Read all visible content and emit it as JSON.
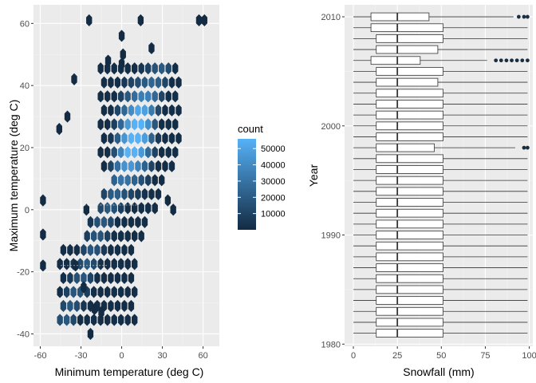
{
  "chart_data": [
    {
      "type": "heatmap",
      "subtype": "hexbin",
      "xlabel": "Minimum temperature (deg C)",
      "ylabel": "Maximum temperature (deg C)",
      "xlim": [
        -65,
        72
      ],
      "ylim": [
        -44,
        66
      ],
      "x_ticks": [
        -60,
        -30,
        0,
        30,
        60
      ],
      "y_ticks": [
        -40,
        -20,
        0,
        20,
        40,
        60
      ],
      "legend": {
        "title": "count",
        "labels": [
          "10000",
          "20000",
          "30000",
          "40000",
          "50000"
        ],
        "values": [
          10000,
          20000,
          30000,
          40000,
          50000
        ],
        "min": 0,
        "max": 56000,
        "color_low": "#132B43",
        "color_high": "#56B1F7",
        "placement": "right"
      },
      "hexbin_width": 5.0,
      "hexbin_height": 4.5,
      "core_band": {
        "x_from": -45,
        "x_to": 42,
        "y_low_offset": -18,
        "y_high_offset": 13
      },
      "hotspot": {
        "x": 10,
        "y": 24,
        "peak": 56000
      },
      "outliers": [
        [
          -58,
          -18
        ],
        [
          -58,
          -8
        ],
        [
          -58,
          3
        ],
        [
          -46,
          26
        ],
        [
          -40,
          30
        ],
        [
          -24,
          61
        ],
        [
          -26,
          0
        ],
        [
          -34,
          -18
        ],
        [
          -28,
          -25
        ],
        [
          -20,
          -32
        ],
        [
          -15,
          -33
        ],
        [
          -23,
          -40
        ],
        [
          0,
          56
        ],
        [
          1,
          50
        ],
        [
          0,
          47
        ],
        [
          14,
          61
        ],
        [
          22,
          52
        ],
        [
          57,
          61
        ],
        [
          61,
          61
        ],
        [
          34,
          3
        ],
        [
          38,
          0
        ],
        [
          -35,
          42
        ],
        [
          -10,
          48
        ]
      ],
      "grid": true,
      "background": "#EBEBEB"
    },
    {
      "type": "boxplot",
      "orientation": "horizontal",
      "xlabel": "Snowfall (mm)",
      "ylabel": "Year",
      "xlim": [
        -5,
        102
      ],
      "ylim": [
        1979.8,
        2011.1
      ],
      "x_ticks": [
        0,
        25,
        50,
        75,
        100
      ],
      "y_ticks": [
        1980,
        1990,
        2000,
        2010
      ],
      "grid": true,
      "background": "#EBEBEB",
      "box_fill": "#FFFFFF",
      "box_stroke": "#333333",
      "outlier_color": "#1A2E40",
      "boxes": [
        {
          "year": 1981,
          "min": 0,
          "q1": 13,
          "median": 25,
          "q3": 51,
          "max": 99,
          "outliers": []
        },
        {
          "year": 1982,
          "min": 0,
          "q1": 13,
          "median": 25,
          "q3": 51,
          "max": 99,
          "outliers": []
        },
        {
          "year": 1983,
          "min": 0,
          "q1": 13,
          "median": 25,
          "q3": 51,
          "max": 99,
          "outliers": []
        },
        {
          "year": 1984,
          "min": 0,
          "q1": 13,
          "median": 25,
          "q3": 51,
          "max": 99,
          "outliers": []
        },
        {
          "year": 1985,
          "min": 0,
          "q1": 13,
          "median": 25,
          "q3": 51,
          "max": 99,
          "outliers": []
        },
        {
          "year": 1986,
          "min": 0,
          "q1": 13,
          "median": 25,
          "q3": 51,
          "max": 99,
          "outliers": []
        },
        {
          "year": 1987,
          "min": 0,
          "q1": 13,
          "median": 25,
          "q3": 51,
          "max": 99,
          "outliers": []
        },
        {
          "year": 1988,
          "min": 0,
          "q1": 13,
          "median": 25,
          "q3": 51,
          "max": 99,
          "outliers": []
        },
        {
          "year": 1989,
          "min": 0,
          "q1": 13,
          "median": 25,
          "q3": 51,
          "max": 99,
          "outliers": []
        },
        {
          "year": 1990,
          "min": 0,
          "q1": 13,
          "median": 25,
          "q3": 51,
          "max": 99,
          "outliers": []
        },
        {
          "year": 1991,
          "min": 0,
          "q1": 13,
          "median": 25,
          "q3": 51,
          "max": 99,
          "outliers": []
        },
        {
          "year": 1992,
          "min": 0,
          "q1": 13,
          "median": 25,
          "q3": 51,
          "max": 99,
          "outliers": []
        },
        {
          "year": 1993,
          "min": 0,
          "q1": 13,
          "median": 25,
          "q3": 51,
          "max": 99,
          "outliers": []
        },
        {
          "year": 1994,
          "min": 0,
          "q1": 13,
          "median": 25,
          "q3": 51,
          "max": 99,
          "outliers": []
        },
        {
          "year": 1995,
          "min": 0,
          "q1": 13,
          "median": 25,
          "q3": 51,
          "max": 99,
          "outliers": []
        },
        {
          "year": 1996,
          "min": 0,
          "q1": 13,
          "median": 25,
          "q3": 51,
          "max": 99,
          "outliers": []
        },
        {
          "year": 1997,
          "min": 0,
          "q1": 13,
          "median": 25,
          "q3": 51,
          "max": 99,
          "outliers": []
        },
        {
          "year": 1998,
          "min": 0,
          "q1": 13,
          "median": 25,
          "q3": 46,
          "max": 92,
          "outliers": [
            97,
            99
          ]
        },
        {
          "year": 1999,
          "min": 0,
          "q1": 13,
          "median": 25,
          "q3": 51,
          "max": 99,
          "outliers": []
        },
        {
          "year": 2000,
          "min": 0,
          "q1": 13,
          "median": 25,
          "q3": 51,
          "max": 99,
          "outliers": []
        },
        {
          "year": 2001,
          "min": 0,
          "q1": 13,
          "median": 25,
          "q3": 51,
          "max": 99,
          "outliers": []
        },
        {
          "year": 2002,
          "min": 0,
          "q1": 13,
          "median": 25,
          "q3": 51,
          "max": 99,
          "outliers": []
        },
        {
          "year": 2003,
          "min": 0,
          "q1": 13,
          "median": 25,
          "q3": 51,
          "max": 99,
          "outliers": []
        },
        {
          "year": 2004,
          "min": 0,
          "q1": 13,
          "median": 25,
          "q3": 48,
          "max": 99,
          "outliers": []
        },
        {
          "year": 2005,
          "min": 0,
          "q1": 13,
          "median": 25,
          "q3": 51,
          "max": 99,
          "outliers": []
        },
        {
          "year": 2006,
          "min": 0,
          "q1": 10,
          "median": 25,
          "q3": 38,
          "max": 76,
          "outliers": [
            81,
            84,
            87,
            90,
            93,
            96,
            99
          ]
        },
        {
          "year": 2007,
          "min": 0,
          "q1": 13,
          "median": 25,
          "q3": 48,
          "max": 99,
          "outliers": []
        },
        {
          "year": 2008,
          "min": 0,
          "q1": 13,
          "median": 25,
          "q3": 51,
          "max": 99,
          "outliers": []
        },
        {
          "year": 2009,
          "min": 0,
          "q1": 10,
          "median": 25,
          "q3": 51,
          "max": 99,
          "outliers": []
        },
        {
          "year": 2010,
          "min": 0,
          "q1": 10,
          "median": 25,
          "q3": 43,
          "max": 91,
          "outliers": [
            94,
            97,
            99
          ]
        }
      ]
    }
  ]
}
